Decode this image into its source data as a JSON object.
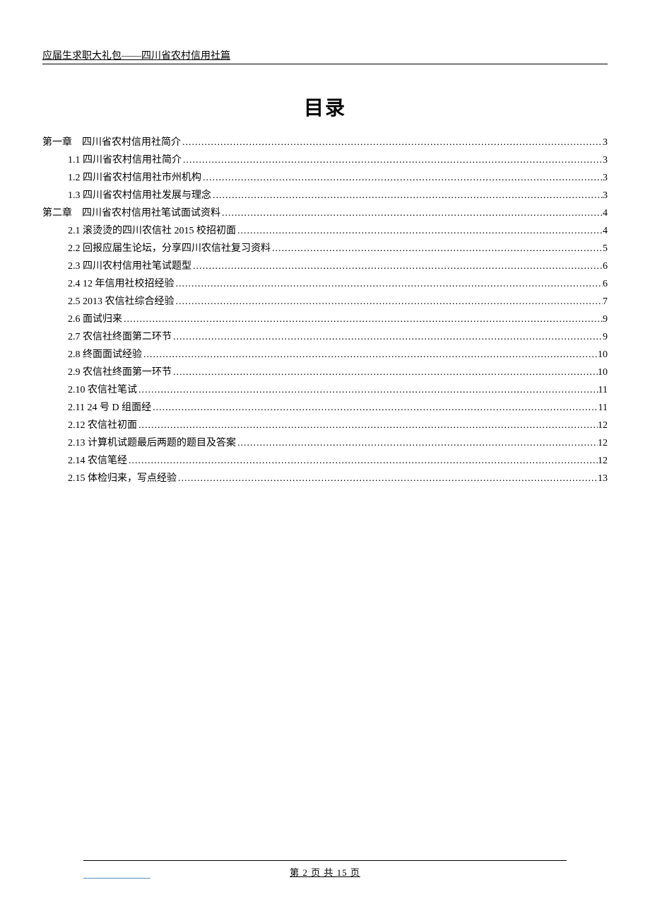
{
  "document": {
    "header": "应届生求职大礼包——四川省农村信用社篇",
    "title": "目录",
    "footer": "第 2 页 共 15 页",
    "colors": {
      "background": "#ffffff",
      "text": "#000000",
      "footer_accent": "#5b8fbf"
    },
    "typography": {
      "header_fontsize": 14,
      "title_fontsize": 28,
      "toc_fontsize": 14,
      "footer_fontsize": 13,
      "toc_line_height": 25
    },
    "toc_entries": [
      {
        "level": 1,
        "label": "第一章　四川省农村信用社简介",
        "page": "3"
      },
      {
        "level": 2,
        "label": "1.1 四川省农村信用社简介",
        "page": "3"
      },
      {
        "level": 2,
        "label": "1.2 四川省农村信用社市州机构",
        "page": "3"
      },
      {
        "level": 2,
        "label": "1.3  四川省农村信用社发展与理念",
        "page": "3"
      },
      {
        "level": 1,
        "label": "第二章　四川省农村信用社笔试面试资料",
        "page": "4"
      },
      {
        "level": 2,
        "label": "2.1  滚烫烫的四川农信社 2015 校招初面",
        "page": "4"
      },
      {
        "level": 2,
        "label": "2.2  回报应届生论坛，分享四川农信社复习资料",
        "page": "5"
      },
      {
        "level": 2,
        "label": "2.3  四川农村信用社笔试题型",
        "page": "6"
      },
      {
        "level": 2,
        "label": "2.4 12 年信用社校招经验",
        "page": "6"
      },
      {
        "level": 2,
        "label": "2.5 2013 农信社综合经验",
        "page": "7"
      },
      {
        "level": 2,
        "label": "2.6  面试归来",
        "page": "9"
      },
      {
        "level": 2,
        "label": "2.7  农信社终面第二环节",
        "page": "9"
      },
      {
        "level": 2,
        "label": "2.8  终面面试经验",
        "page": "10"
      },
      {
        "level": 2,
        "label": "2.9  农信社终面第一环节",
        "page": "10"
      },
      {
        "level": 2,
        "label": "2.10  农信社笔试",
        "page": "11"
      },
      {
        "level": 2,
        "label": "2.11  24 号 D 组面经",
        "page": "11"
      },
      {
        "level": 2,
        "label": "2.12  农信社初面",
        "page": "12"
      },
      {
        "level": 2,
        "label": "2.13  计算机试题最后两题的题目及答案",
        "page": "12"
      },
      {
        "level": 2,
        "label": "2.14  农信笔经",
        "page": "12"
      },
      {
        "level": 2,
        "label": "2.15  体检归来，写点经验",
        "page": "13"
      }
    ]
  }
}
